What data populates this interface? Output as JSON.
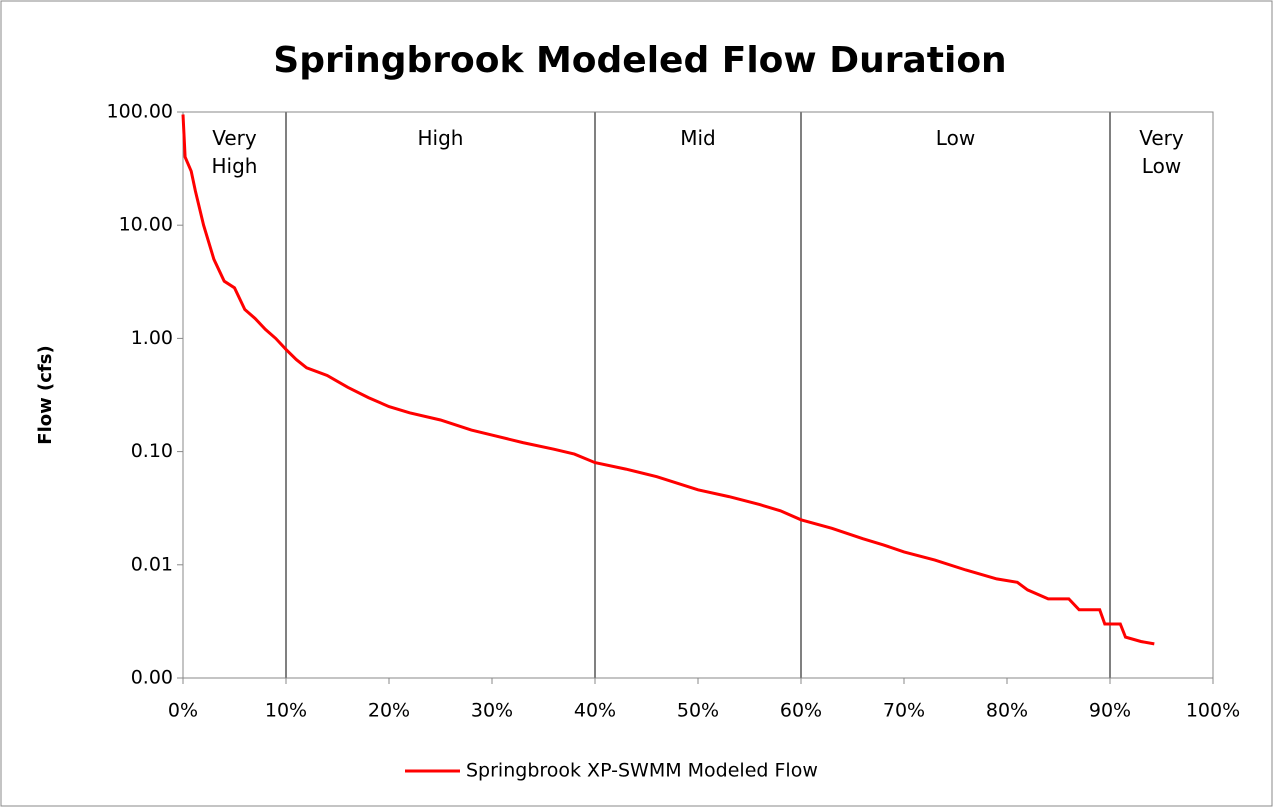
{
  "chart_data": {
    "type": "line",
    "title": "Springbrook Modeled Flow Duration",
    "y_label": "Flow (cfs)",
    "log_y": true,
    "ylim": [
      0.001,
      100
    ],
    "yticks": [
      {
        "value": 100,
        "label": "100.00"
      },
      {
        "value": 10,
        "label": "10.00"
      },
      {
        "value": 1,
        "label": "1.00"
      },
      {
        "value": 0.1,
        "label": "0.10"
      },
      {
        "value": 0.01,
        "label": "0.01"
      },
      {
        "value": 0.001,
        "label": "0.00"
      }
    ],
    "xlim": [
      0,
      100
    ],
    "xticks": [
      {
        "value": 0,
        "label": "0%"
      },
      {
        "value": 10,
        "label": "10%"
      },
      {
        "value": 20,
        "label": "20%"
      },
      {
        "value": 30,
        "label": "30%"
      },
      {
        "value": 40,
        "label": "40%"
      },
      {
        "value": 50,
        "label": "50%"
      },
      {
        "value": 60,
        "label": "60%"
      },
      {
        "value": 70,
        "label": "70%"
      },
      {
        "value": 80,
        "label": "80%"
      },
      {
        "value": 90,
        "label": "90%"
      },
      {
        "value": 100,
        "label": "100%"
      }
    ],
    "zone_boundaries": [
      10,
      40,
      60,
      90
    ],
    "zone_labels": [
      "Very High",
      "High",
      "Mid",
      "Low",
      "Very Low"
    ],
    "x": [
      0,
      0.2,
      0.8,
      1.2,
      2,
      3,
      4,
      5,
      6,
      7,
      8,
      9,
      10,
      11,
      12,
      14,
      16,
      18,
      20,
      22,
      25,
      28,
      30,
      33,
      36,
      38,
      40,
      43,
      46,
      50,
      53,
      56,
      58,
      60,
      63,
      66,
      68,
      70,
      73,
      76,
      79,
      81,
      82,
      84,
      86,
      87,
      89,
      89.5,
      91,
      91.5,
      93,
      94.3
    ],
    "series": [
      {
        "name": "Springbrook XP-SWMM Modeled Flow",
        "color": "#ff0000",
        "values": [
          95,
          40,
          30,
          20,
          10,
          5,
          3.2,
          2.8,
          1.8,
          1.5,
          1.2,
          1.0,
          0.8,
          0.65,
          0.55,
          0.47,
          0.37,
          0.3,
          0.25,
          0.22,
          0.19,
          0.155,
          0.14,
          0.12,
          0.105,
          0.095,
          0.08,
          0.07,
          0.06,
          0.046,
          0.04,
          0.034,
          0.03,
          0.025,
          0.021,
          0.017,
          0.015,
          0.013,
          0.011,
          0.009,
          0.0075,
          0.007,
          0.006,
          0.005,
          0.005,
          0.004,
          0.004,
          0.003,
          0.003,
          0.0023,
          0.0021,
          0.002
        ]
      }
    ]
  }
}
